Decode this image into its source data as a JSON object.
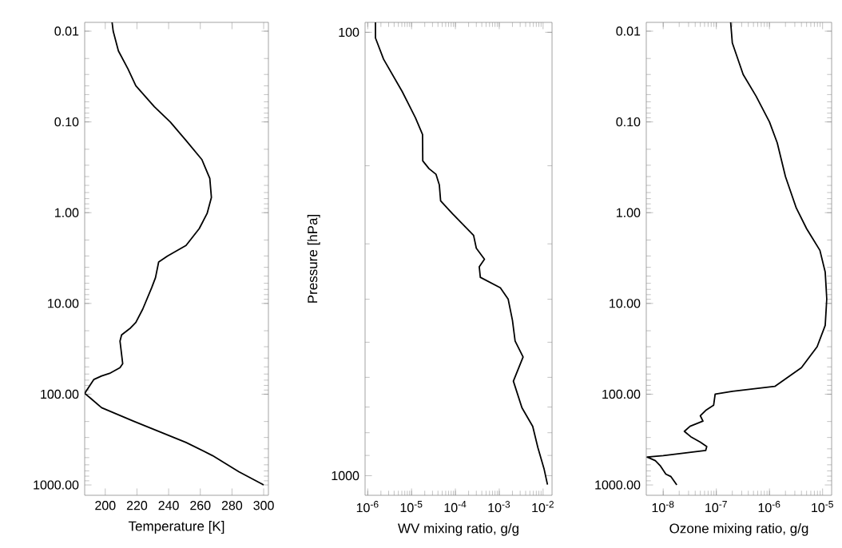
{
  "chart_data": [
    {
      "type": "line",
      "xlabel": "Temperature [K]",
      "log": "y",
      "color": "#000000",
      "xlim": [
        187,
        303
      ],
      "ylim": [
        1300,
        0.008
      ],
      "xticks": [
        200,
        220,
        240,
        260,
        280,
        300
      ],
      "yticks": [
        {
          "value": 0.01,
          "label": "0.01"
        },
        {
          "value": 0.1,
          "label": "0.10"
        },
        {
          "value": 1,
          "label": "1.00"
        },
        {
          "value": 10,
          "label": "10.00"
        },
        {
          "value": 100,
          "label": "100.00"
        },
        {
          "value": 1000,
          "label": "1000.00"
        }
      ],
      "x": [
        204.3,
        205,
        208.3,
        214.3,
        219.3,
        231,
        241,
        251,
        261,
        266,
        267,
        264.3,
        259.3,
        251,
        239.3,
        233.7,
        231.7,
        229.3,
        223.7,
        219.3,
        216,
        210.3,
        209.3,
        211,
        209.3,
        202.7,
        197.7,
        192.7,
        187,
        191,
        197.7,
        217.7,
        251,
        267.7,
        284.3,
        300
      ],
      "values": [
        0.008,
        0.01,
        0.0165,
        0.026,
        0.04,
        0.068,
        0.1,
        0.16,
        0.26,
        0.42,
        0.68,
        1.02,
        1.5,
        2.3,
        3.0,
        3.5,
        5.2,
        6.7,
        11.5,
        16.2,
        18.6,
        22.2,
        26,
        46,
        51,
        59,
        63,
        69,
        98,
        112,
        141,
        198,
        340,
        475,
        715,
        1000
      ]
    },
    {
      "type": "line",
      "xlabel": "WV mixing ratio, g/g",
      "ylabel": "Pressure [hPa]",
      "log": "xy",
      "color": "#000000",
      "xlim": [
        8.7e-07,
        0.016
      ],
      "ylim": [
        1107,
        95
      ],
      "xticks": [
        {
          "value": 1e-06,
          "label": "10$^{-6}$"
        },
        {
          "value": 1e-05,
          "label": "10$^{-5}$"
        },
        {
          "value": 0.0001,
          "label": "10$^{-4}$"
        },
        {
          "value": 0.001,
          "label": "10$^{-3}$"
        },
        {
          "value": 0.01,
          "label": "10$^{-2}$"
        }
      ],
      "yticks": [
        100,
        1000
      ],
      "x": [
        1.5e-06,
        1.5e-06,
        2.3e-06,
        6.1e-06,
        1.23e-05,
        1.78e-05,
        1.8e-05,
        2.5e-05,
        3.6e-05,
        4.3e-05,
        4.6e-05,
        8.7e-05,
        0.00026,
        0.0003,
        0.00046,
        0.00035,
        0.00037,
        0.00106,
        0.0016,
        0.002,
        0.0023,
        0.0035,
        0.0021,
        0.0033,
        0.0058,
        0.0076,
        0.0105,
        0.0126
      ],
      "values": [
        95,
        103,
        115,
        136,
        156,
        170,
        195,
        203,
        209,
        221,
        240,
        257,
        287,
        307,
        325,
        338,
        357,
        377,
        400,
        446,
        497,
        540,
        612,
        703,
        774,
        864,
        964,
        1047
      ]
    },
    {
      "type": "line",
      "xlabel": "Ozone mixing ratio, g/g",
      "log": "xy",
      "color": "#000000",
      "xlim": [
        4.8e-09,
        1.48e-05
      ],
      "ylim": [
        1300,
        0.008
      ],
      "xticks": [
        {
          "value": 1e-08,
          "label": "10$^{-8}$"
        },
        {
          "value": 1e-07,
          "label": "10$^{-7}$"
        },
        {
          "value": 1e-06,
          "label": "10$^{-6}$"
        },
        {
          "value": 1e-05,
          "label": "10$^{-5}$"
        }
      ],
      "yticks": [
        {
          "value": 0.01,
          "label": "0.01"
        },
        {
          "value": 0.1,
          "label": "0.10"
        },
        {
          "value": 1,
          "label": "1.00"
        },
        {
          "value": 10,
          "label": "10.00"
        },
        {
          "value": 100,
          "label": "100.00"
        },
        {
          "value": 1000,
          "label": "1000.00"
        }
      ],
      "x": [
        1.86e-07,
        2e-07,
        3.2e-07,
        5.6e-07,
        1e-06,
        1.4e-06,
        2e-06,
        3.2e-06,
        5e-06,
        8.9e-06,
        1.12e-05,
        1.2e-05,
        1.12e-05,
        7.9e-06,
        4e-06,
        1.26e-06,
        2e-07,
        9.5e-08,
        8.9e-08,
        6.3e-08,
        5e-08,
        5.6e-08,
        3.2e-08,
        2.5e-08,
        3.3e-08,
        5e-08,
        6.6e-08,
        6.3e-08,
        1e-08,
        5e-09,
        7.1e-09,
        8.9e-09,
        1.12e-08,
        1.4e-08,
        1.8e-08
      ],
      "values": [
        0.008,
        0.0135,
        0.03,
        0.052,
        0.1,
        0.17,
        0.4,
        0.89,
        1.5,
        2.6,
        4.5,
        8.9,
        17.5,
        30,
        51,
        82,
        93,
        100,
        132,
        151,
        173,
        198,
        226,
        257,
        294,
        338,
        377,
        417,
        475,
        492,
        540,
        620,
        760,
        810,
        1000
      ]
    }
  ]
}
